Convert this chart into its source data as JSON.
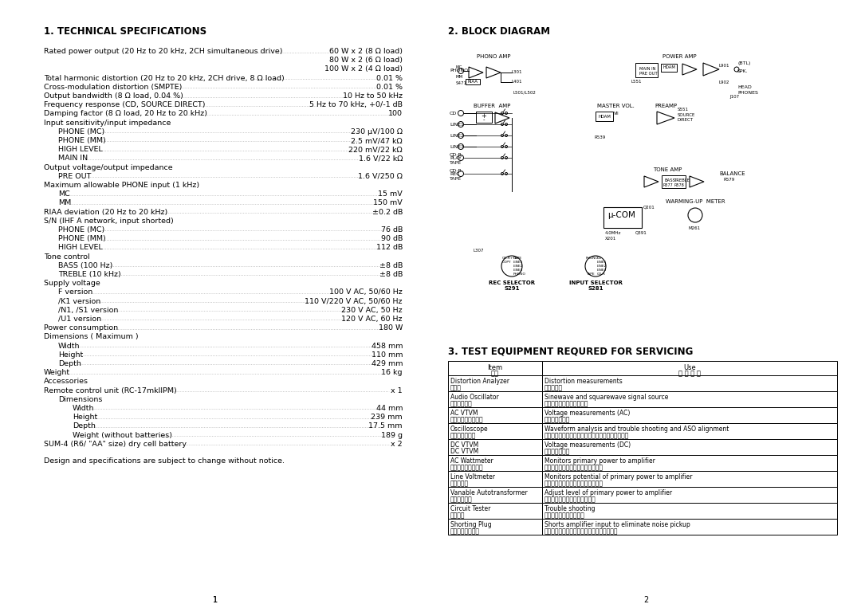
{
  "bg_color": "#ffffff",
  "text_color": "#000000",
  "page_width": 10.8,
  "page_height": 7.63,
  "section1_title": "1. TECHNICAL SPECIFICATIONS",
  "section2_title": "2. BLOCK DIAGRAM",
  "section3_title": "3. TEST EQUIPMENT REQURED FOR SERVICING",
  "specs": [
    {
      "label": "Rated power output (20 Hz to 20 kHz, 2CH simultaneous drive)",
      "dots": true,
      "value": "60 W x 2 (8 Ω load)",
      "indent": 0
    },
    {
      "label": "",
      "dots": false,
      "value": "80 W x 2 (6 Ω load)",
      "indent": 0
    },
    {
      "label": "",
      "dots": false,
      "value": "100 W x 2 (4 Ω load)",
      "indent": 0
    },
    {
      "label": "Total harmonic distortion (20 Hz to 20 kHz, 2CH drive, 8 Ω load)",
      "dots": true,
      "value": "0.01 %",
      "indent": 0
    },
    {
      "label": "Cross-modulation distortion (SMPTE)",
      "dots": true,
      "value": "0.01 %",
      "indent": 0
    },
    {
      "label": "Output bandwidth (8 Ω load, 0.04 %)",
      "dots": true,
      "value": "10 Hz to 50 kHz",
      "indent": 0
    },
    {
      "label": "Frequency response (CD, SOURCE DIRECT)",
      "dots": true,
      "value": "5 Hz to 70 kHz, +0/-1 dB",
      "indent": 0
    },
    {
      "label": "Damping factor (8 Ω load, 20 Hz to 20 kHz)",
      "dots": true,
      "value": "100",
      "indent": 0
    },
    {
      "label": "Input sensitivity/input impedance",
      "dots": false,
      "value": "",
      "indent": 0
    },
    {
      "label": "PHONE (MC)",
      "dots": true,
      "value": "230 μV/100 Ω",
      "indent": 1
    },
    {
      "label": "PHONE (MM)",
      "dots": true,
      "value": "2.5 mV/47 kΩ",
      "indent": 1
    },
    {
      "label": "HIGH LEVEL",
      "dots": true,
      "value": "220 mV/22 kΩ",
      "indent": 1
    },
    {
      "label": "MAIN IN",
      "dots": true,
      "value": "1.6 V/22 kΩ",
      "indent": 1
    },
    {
      "label": "Output voltage/output impedance",
      "dots": false,
      "value": "",
      "indent": 0
    },
    {
      "label": "PRE OUT",
      "dots": true,
      "value": "1.6 V/250 Ω",
      "indent": 1
    },
    {
      "label": "Maximum allowable PHONE input (1 kHz)",
      "dots": false,
      "value": "",
      "indent": 0
    },
    {
      "label": "MC",
      "dots": true,
      "value": "15 mV",
      "indent": 1
    },
    {
      "label": "MM",
      "dots": true,
      "value": "150 mV",
      "indent": 1
    },
    {
      "label": "RIAA deviation (20 Hz to 20 kHz)",
      "dots": true,
      "value": "±0.2 dB",
      "indent": 0
    },
    {
      "label": "S/N (IHF A network, input shorted)",
      "dots": false,
      "value": "",
      "indent": 0
    },
    {
      "label": "PHONE (MC)",
      "dots": true,
      "value": "76 dB",
      "indent": 1
    },
    {
      "label": "PHONE (MM)",
      "dots": true,
      "value": "90 dB",
      "indent": 1
    },
    {
      "label": "HIGH LEVEL",
      "dots": true,
      "value": "112 dB",
      "indent": 1
    },
    {
      "label": "Tone control",
      "dots": false,
      "value": "",
      "indent": 0
    },
    {
      "label": "BASS (100 Hz)",
      "dots": true,
      "value": "±8 dB",
      "indent": 1
    },
    {
      "label": "TREBLE (10 kHz)",
      "dots": true,
      "value": "±8 dB",
      "indent": 1
    },
    {
      "label": "Supply voltage",
      "dots": false,
      "value": "",
      "indent": 0
    },
    {
      "label": "F version",
      "dots": true,
      "value": "100 V AC, 50/60 Hz",
      "indent": 1
    },
    {
      "label": "/K1 version",
      "dots": true,
      "value": "110 V/220 V AC, 50/60 Hz",
      "indent": 1
    },
    {
      "label": "/N1, /S1 version",
      "dots": true,
      "value": "230 V AC, 50 Hz",
      "indent": 1
    },
    {
      "label": "/U1 version",
      "dots": true,
      "value": "120 V AC, 60 Hz",
      "indent": 1
    },
    {
      "label": "Power consumption",
      "dots": true,
      "value": "180 W",
      "indent": 0
    },
    {
      "label": "Dimensions ( Maximum )",
      "dots": false,
      "value": "",
      "indent": 0
    },
    {
      "label": "Width",
      "dots": true,
      "value": "458 mm",
      "indent": 1
    },
    {
      "label": "Height",
      "dots": true,
      "value": "110 mm",
      "indent": 1
    },
    {
      "label": "Depth",
      "dots": true,
      "value": "429 mm",
      "indent": 1
    },
    {
      "label": "Weight",
      "dots": true,
      "value": "16 kg",
      "indent": 0
    },
    {
      "label": "Accessories",
      "dots": false,
      "value": "",
      "indent": 0
    },
    {
      "label": "Remote control unit (RC-17mkIIPM)",
      "dots": true,
      "value": "x 1",
      "indent": 0
    },
    {
      "label": "Dimensions",
      "dots": false,
      "value": "",
      "indent": 1
    },
    {
      "label": "Width",
      "dots": true,
      "value": "44 mm",
      "indent": 2
    },
    {
      "label": "Height",
      "dots": true,
      "value": "239 mm",
      "indent": 2
    },
    {
      "label": "Depth",
      "dots": true,
      "value": "17.5 mm",
      "indent": 2
    },
    {
      "label": "Weight (without batteries)",
      "dots": true,
      "value": "189 g",
      "indent": 2
    },
    {
      "label": "SUM-4 (R6/ \"AA\" size) dry cell battery",
      "dots": true,
      "value": "x 2",
      "indent": 0
    }
  ],
  "footer_note": "Design and specifications are subject to change without notice.",
  "page_num_left": "1",
  "page_num_right": "2",
  "table_header_item_en": "Item",
  "table_header_item_jp": "項目",
  "table_header_use_en": "Use",
  "table_header_use_jp": "使 用 方 法",
  "table_header_mid": "使",
  "test_equipment": [
    {
      "item_en": "Distortion Analyzer",
      "item_jp": "歪み計",
      "use_en": "Distortion measurements",
      "use_jp": "歪みの測定"
    },
    {
      "item_en": "Audio Oscillator",
      "item_jp": "低周波発振器",
      "use_en": "Sinewave and squarewave signal source",
      "use_jp": "正弦波及び矩形波の発生器"
    },
    {
      "item_en": "AC VTVM",
      "item_jp": "交流フットメーター",
      "use_en": "Voltage measurements (AC)",
      "use_jp": "交流電圧の測定"
    },
    {
      "item_en": "Oscilloscope",
      "item_jp": "オシロスコープ",
      "use_en": "Waveform analysis and trouble shooting and ASO alignment",
      "use_jp": "波形分析、トラブルシューティング及ＡＳＯの調整"
    },
    {
      "item_en": "DC VTVM",
      "item_jp": "DC VTVM",
      "use_en": "Voltage measurements (DC)",
      "use_jp": "直流電圧の測定"
    },
    {
      "item_en": "AC Wattmeter",
      "item_jp": "交流ワットメーター",
      "use_en": "Monitors primary power to amplifier",
      "use_jp": "アンプの一次側消費電力のモニター"
    },
    {
      "item_en": "Line Voltmeter",
      "item_jp": "電源電圧計",
      "use_en": "Monitors potential of primary power to amplifier",
      "use_jp": "アンプの一次側消費電圧のモニター"
    },
    {
      "item_en": "Vanable Autotransformer",
      "item_jp": "スライダック",
      "use_en": "Adjust level of primary power to amplifier",
      "use_jp": "アンプの一次側消費電圧の調節"
    },
    {
      "item_en": "Circuit Tester",
      "item_jp": "テスター",
      "use_en": "Trouble shooting",
      "use_jp": "トラブルシューティング"
    },
    {
      "item_en": "Shorting Plug",
      "item_jp": "ショート用プラグ",
      "use_en": "Shorts amplifier input to eliminate noise pickup",
      "use_jp": "雑音を拾わないようにアンプ入力を短絡する"
    }
  ]
}
